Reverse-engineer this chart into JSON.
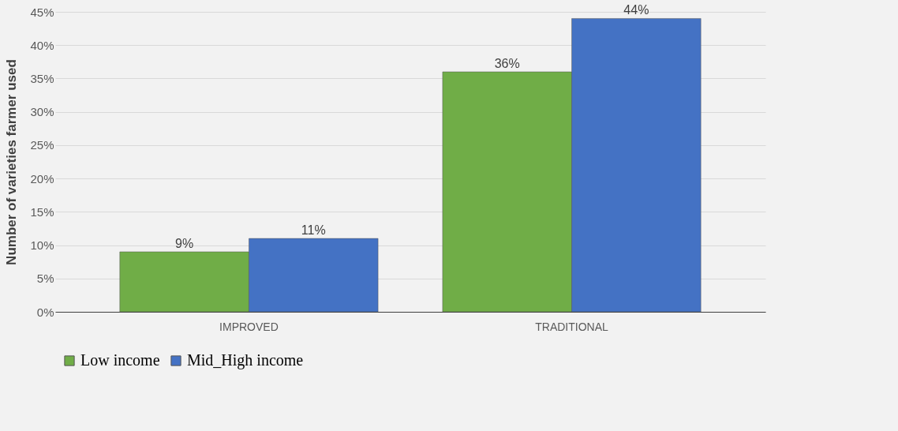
{
  "chart_data": {
    "type": "bar",
    "ylabel": "Number of varieties farmer used",
    "categories": [
      "IMPROVED",
      "TRADITIONAL"
    ],
    "series": [
      {
        "name": "Low income",
        "color": "#70ad47",
        "values": [
          9,
          36
        ],
        "value_labels": [
          "9%",
          "36%"
        ]
      },
      {
        "name": "Mid_High income",
        "color": "#4472c4",
        "values": [
          11,
          44
        ],
        "value_labels": [
          "11%",
          "44%"
        ]
      }
    ],
    "ylim": [
      0,
      45
    ],
    "yticks": [
      {
        "value": 0,
        "label": "0%"
      },
      {
        "value": 5,
        "label": "5%"
      },
      {
        "value": 10,
        "label": "10%"
      },
      {
        "value": 15,
        "label": "15%"
      },
      {
        "value": 20,
        "label": "20%"
      },
      {
        "value": 25,
        "label": "25%"
      },
      {
        "value": 30,
        "label": "30%"
      },
      {
        "value": 35,
        "label": "35%"
      },
      {
        "value": 40,
        "label": "40%"
      },
      {
        "value": 45,
        "label": "45%"
      }
    ],
    "grid": "y",
    "legend": "bottom"
  }
}
